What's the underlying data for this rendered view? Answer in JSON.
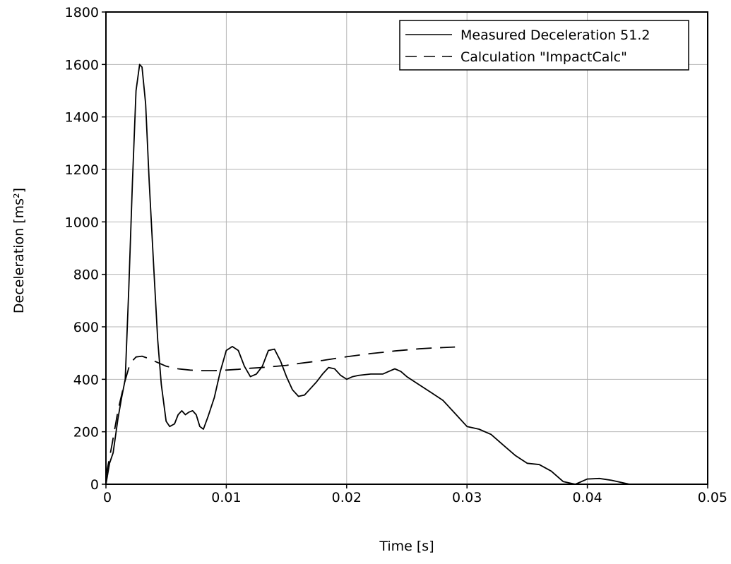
{
  "chart_data": {
    "type": "line",
    "title": "",
    "xlabel": "Time [s]",
    "ylabel": "Deceleration [ms²]",
    "xlim": [
      0,
      0.05
    ],
    "ylim": [
      0,
      1800
    ],
    "x_ticks": [
      0,
      0.01,
      0.02,
      0.03,
      0.04,
      0.05
    ],
    "x_tick_labels": [
      "0",
      "0.01",
      "0.02",
      "0.03",
      "0.04",
      "0.05"
    ],
    "y_ticks": [
      0,
      200,
      400,
      600,
      800,
      1000,
      1200,
      1400,
      1600,
      1800
    ],
    "y_tick_labels": [
      "0",
      "200",
      "400",
      "600",
      "800",
      "1000",
      "1200",
      "1400",
      "1600",
      "1800"
    ],
    "grid": true,
    "legend_position": "top-right",
    "series": [
      {
        "name": "Measured Deceleration 51.2",
        "style": "solid",
        "color": "#000000",
        "points": [
          [
            0,
            0
          ],
          [
            0.0003,
            80
          ],
          [
            0.0006,
            120
          ],
          [
            0.001,
            250
          ],
          [
            0.0013,
            330
          ],
          [
            0.0016,
            400
          ],
          [
            0.0019,
            750
          ],
          [
            0.0022,
            1150
          ],
          [
            0.0025,
            1500
          ],
          [
            0.0028,
            1600
          ],
          [
            0.003,
            1590
          ],
          [
            0.0033,
            1450
          ],
          [
            0.0036,
            1150
          ],
          [
            0.004,
            800
          ],
          [
            0.0043,
            550
          ],
          [
            0.0046,
            380
          ],
          [
            0.005,
            240
          ],
          [
            0.0053,
            220
          ],
          [
            0.0057,
            230
          ],
          [
            0.006,
            265
          ],
          [
            0.0063,
            280
          ],
          [
            0.0066,
            265
          ],
          [
            0.0069,
            275
          ],
          [
            0.0072,
            280
          ],
          [
            0.0075,
            265
          ],
          [
            0.0078,
            220
          ],
          [
            0.0081,
            210
          ],
          [
            0.0085,
            260
          ],
          [
            0.009,
            330
          ],
          [
            0.0095,
            430
          ],
          [
            0.01,
            510
          ],
          [
            0.0105,
            525
          ],
          [
            0.011,
            510
          ],
          [
            0.0115,
            450
          ],
          [
            0.012,
            410
          ],
          [
            0.0125,
            420
          ],
          [
            0.013,
            450
          ],
          [
            0.0135,
            510
          ],
          [
            0.014,
            515
          ],
          [
            0.0145,
            470
          ],
          [
            0.015,
            410
          ],
          [
            0.0155,
            360
          ],
          [
            0.016,
            335
          ],
          [
            0.0165,
            340
          ],
          [
            0.017,
            365
          ],
          [
            0.0175,
            390
          ],
          [
            0.018,
            420
          ],
          [
            0.0185,
            445
          ],
          [
            0.019,
            440
          ],
          [
            0.0195,
            415
          ],
          [
            0.02,
            400
          ],
          [
            0.0205,
            410
          ],
          [
            0.021,
            415
          ],
          [
            0.022,
            420
          ],
          [
            0.023,
            420
          ],
          [
            0.0235,
            430
          ],
          [
            0.024,
            440
          ],
          [
            0.0245,
            430
          ],
          [
            0.025,
            410
          ],
          [
            0.026,
            380
          ],
          [
            0.027,
            350
          ],
          [
            0.028,
            320
          ],
          [
            0.029,
            270
          ],
          [
            0.03,
            220
          ],
          [
            0.031,
            210
          ],
          [
            0.032,
            190
          ],
          [
            0.033,
            150
          ],
          [
            0.034,
            110
          ],
          [
            0.035,
            80
          ],
          [
            0.036,
            75
          ],
          [
            0.037,
            50
          ],
          [
            0.038,
            10
          ],
          [
            0.0385,
            5
          ],
          [
            0.039,
            0
          ],
          [
            0.0395,
            10
          ],
          [
            0.04,
            20
          ],
          [
            0.041,
            22
          ],
          [
            0.042,
            15
          ],
          [
            0.043,
            5
          ],
          [
            0.0435,
            0
          ],
          [
            0.05,
            0
          ]
        ]
      },
      {
        "name": "Calculation \"ImpactCalc\"",
        "style": "dashed",
        "color": "#000000",
        "points": [
          [
            0,
            30
          ],
          [
            0.0005,
            150
          ],
          [
            0.001,
            280
          ],
          [
            0.0015,
            380
          ],
          [
            0.002,
            460
          ],
          [
            0.0025,
            485
          ],
          [
            0.003,
            488
          ],
          [
            0.0035,
            480
          ],
          [
            0.004,
            470
          ],
          [
            0.005,
            450
          ],
          [
            0.006,
            440
          ],
          [
            0.007,
            435
          ],
          [
            0.008,
            433
          ],
          [
            0.009,
            433
          ],
          [
            0.01,
            435
          ],
          [
            0.011,
            438
          ],
          [
            0.012,
            442
          ],
          [
            0.013,
            445
          ],
          [
            0.014,
            449
          ],
          [
            0.015,
            453
          ],
          [
            0.016,
            460
          ],
          [
            0.017,
            466
          ],
          [
            0.018,
            472
          ],
          [
            0.019,
            479
          ],
          [
            0.02,
            486
          ],
          [
            0.021,
            492
          ],
          [
            0.022,
            498
          ],
          [
            0.023,
            503
          ],
          [
            0.024,
            508
          ],
          [
            0.025,
            512
          ],
          [
            0.026,
            516
          ],
          [
            0.027,
            519
          ],
          [
            0.028,
            521
          ],
          [
            0.029,
            523
          ]
        ]
      }
    ]
  }
}
